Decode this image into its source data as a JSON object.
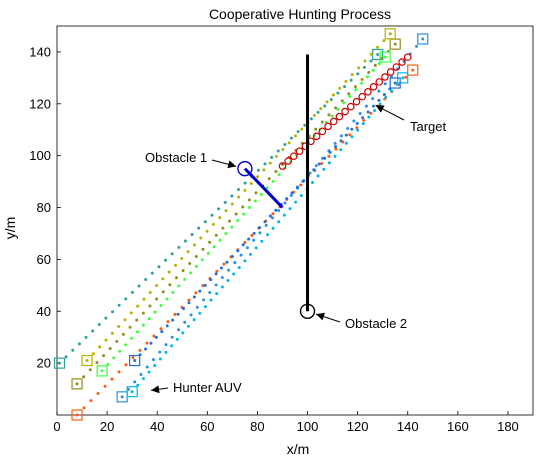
{
  "chart_data": {
    "type": "scatter",
    "title": "Cooperative Hunting Process",
    "xlabel": "x/m",
    "ylabel": "y/m",
    "xlim": [
      0,
      190
    ],
    "ylim": [
      0,
      150
    ],
    "xticks": [
      "0",
      "20",
      "40",
      "60",
      "80",
      "100",
      "120",
      "140",
      "160",
      "180"
    ],
    "yticks": [
      "20",
      "40",
      "60",
      "80",
      "100",
      "120",
      "140"
    ],
    "grid": false,
    "series": [
      {
        "color": "#2aa198",
        "start": [
          1,
          20
        ],
        "end": [
          128,
          139
        ],
        "marker": "square"
      },
      {
        "color": "#8f8f1f",
        "start": [
          8,
          12
        ],
        "end": [
          135,
          143
        ],
        "marker": "square"
      },
      {
        "color": "#b8b000",
        "start": [
          12,
          21
        ],
        "end": [
          133,
          147
        ],
        "marker": "square"
      },
      {
        "color": "#ff5a14",
        "start": [
          8,
          0
        ],
        "end": [
          142,
          133
        ],
        "marker": "square"
      },
      {
        "color": "#3aff3a",
        "start": [
          18,
          17
        ],
        "end": [
          131,
          138
        ],
        "marker": "square"
      },
      {
        "color": "#2b8fe6",
        "start": [
          26,
          7
        ],
        "end": [
          146,
          145
        ],
        "marker": "square"
      },
      {
        "color": "#00b8e6",
        "start": [
          30,
          9
        ],
        "end": [
          138,
          130
        ],
        "marker": "square"
      },
      {
        "color": "#1f6fdf",
        "start": [
          31,
          21
        ],
        "end": [
          135,
          128
        ],
        "marker": "square"
      }
    ],
    "target_path": {
      "color": "#cc0000",
      "start": [
        90,
        96
      ],
      "end": [
        140,
        138
      ]
    },
    "obstacles": [
      {
        "name": "Obstacle 1",
        "center": [
          75,
          95
        ],
        "wall": [
          [
            75,
            95
          ],
          [
            90,
            80
          ]
        ],
        "color": "#0000cc"
      },
      {
        "name": "Obstacle 2",
        "center": [
          100,
          40
        ],
        "wall": [
          [
            100,
            40
          ],
          [
            100,
            139
          ]
        ],
        "color": "#000000"
      }
    ],
    "annotations": [
      {
        "text": "Obstacle 1",
        "points_to": [
          75,
          95
        ]
      },
      {
        "text": "Obstacle 2",
        "points_to": [
          100,
          40
        ]
      },
      {
        "text": "Target",
        "points_to": [
          124,
          121
        ]
      },
      {
        "text": "Hunter AUV",
        "points_to": [
          34,
          9
        ]
      }
    ]
  }
}
